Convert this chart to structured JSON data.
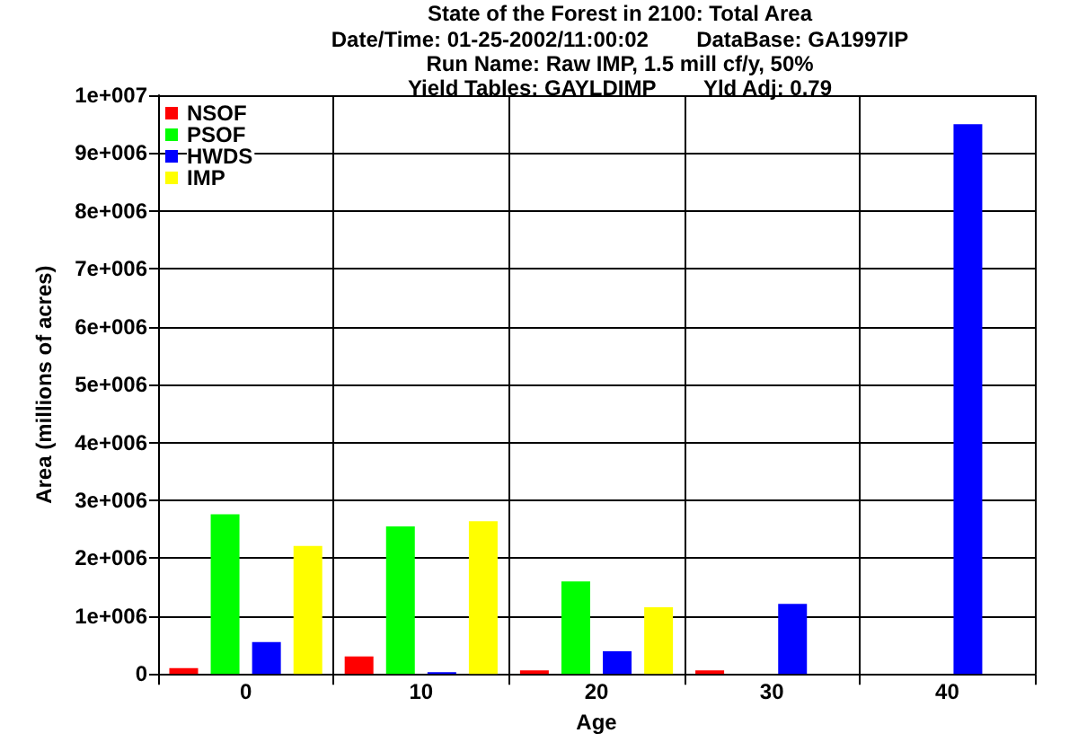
{
  "chart_data": {
    "type": "bar",
    "title": "State of the Forest in 2100: Total Area",
    "subtitle": "Date/Time: 01-25-2002/11:00:02        DataBase: GA1997IP\nRun Name: Raw IMP, 1.5 mill cf/y, 50%\nYield Tables: GAYLDIMP        Yld Adj: 0.79",
    "xlabel": "Age",
    "ylabel": "Area (millions of acres)",
    "categories": [
      "0",
      "10",
      "20",
      "30",
      "40"
    ],
    "series": [
      {
        "name": "NSOF",
        "color": "#ff0000",
        "values": [
          100000,
          300000,
          60000,
          60000,
          0
        ]
      },
      {
        "name": "PSOF",
        "color": "#00ff00",
        "values": [
          2760000,
          2550000,
          1600000,
          0,
          0
        ]
      },
      {
        "name": "HWDS",
        "color": "#0000ff",
        "values": [
          550000,
          30000,
          390000,
          1210000,
          9500000
        ]
      },
      {
        "name": "IMP",
        "color": "#ffff00",
        "values": [
          2210000,
          2640000,
          1150000,
          0,
          0
        ]
      }
    ],
    "ylim": [
      0,
      10000000
    ],
    "yticks": [
      0,
      {
        "value": 1000000,
        "label": "1e+006"
      },
      {
        "value": 2000000,
        "label": "2e+006"
      },
      {
        "value": 3000000,
        "label": "3e+006"
      },
      {
        "value": 4000000,
        "label": "4e+006"
      },
      {
        "value": 5000000,
        "label": "5e+006"
      },
      {
        "value": 6000000,
        "label": "6e+006"
      },
      {
        "value": 7000000,
        "label": "7e+006"
      },
      {
        "value": 8000000,
        "label": "8e+006"
      },
      {
        "value": 9000000,
        "label": "9e+006"
      },
      {
        "value": 10000000,
        "label": "1e+007"
      }
    ],
    "grid": true,
    "legend": "top left"
  }
}
